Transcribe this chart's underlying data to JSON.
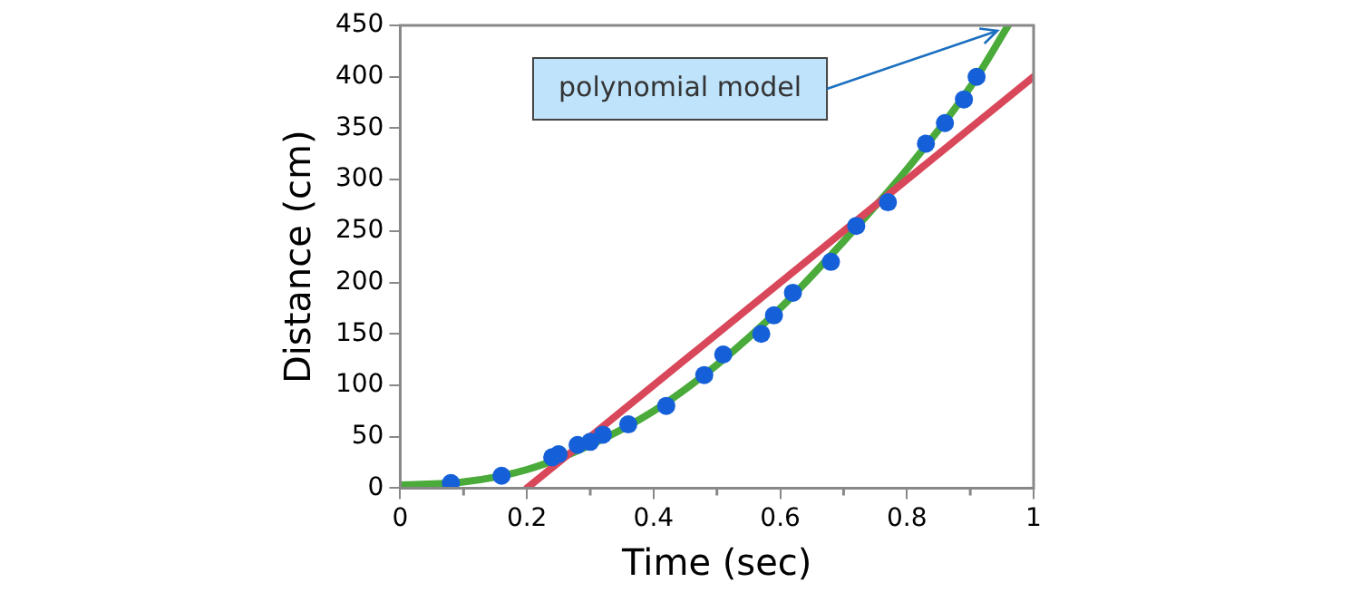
{
  "chart_data": {
    "type": "scatter",
    "xlabel": "Time (sec)",
    "ylabel": "Distance (cm)",
    "xlim": [
      0,
      1
    ],
    "xticks": [
      0,
      0.2,
      0.4,
      0.6,
      0.8,
      1
    ],
    "ylim": [
      0,
      450
    ],
    "yticks": [
      0,
      50,
      100,
      150,
      200,
      250,
      300,
      350,
      400,
      450
    ],
    "grid": false,
    "legend": false,
    "series": [
      {
        "type": "line",
        "color": "#d9485a",
        "marker": "none",
        "x": [
          0.2,
          1
        ],
        "values": [
          0,
          400
        ]
      },
      {
        "type": "line",
        "color": "#4aaa3a",
        "marker": "none",
        "x": [
          0,
          0.1,
          0.2,
          0.3,
          0.4,
          0.5,
          0.6,
          0.7,
          0.8,
          0.9,
          0.96
        ],
        "values": [
          3,
          6,
          18,
          42,
          75,
          120,
          175,
          240,
          310,
          390,
          450
        ]
      },
      {
        "color": "#1560d8",
        "marker": "circle",
        "x": [
          0.08,
          0.16,
          0.24,
          0.25,
          0.28,
          0.3,
          0.32,
          0.36,
          0.42,
          0.48,
          0.51,
          0.57,
          0.59,
          0.62,
          0.68,
          0.72,
          0.77,
          0.83,
          0.86,
          0.89,
          0.91
        ],
        "values": [
          5,
          12,
          30,
          33,
          42,
          45,
          52,
          62,
          80,
          110,
          130,
          150,
          168,
          190,
          220,
          255,
          278,
          335,
          355,
          378,
          400
        ]
      }
    ],
    "annotations": [
      {
        "text": "polynomial model",
        "x": 0.96,
        "y": 450
      }
    ]
  }
}
